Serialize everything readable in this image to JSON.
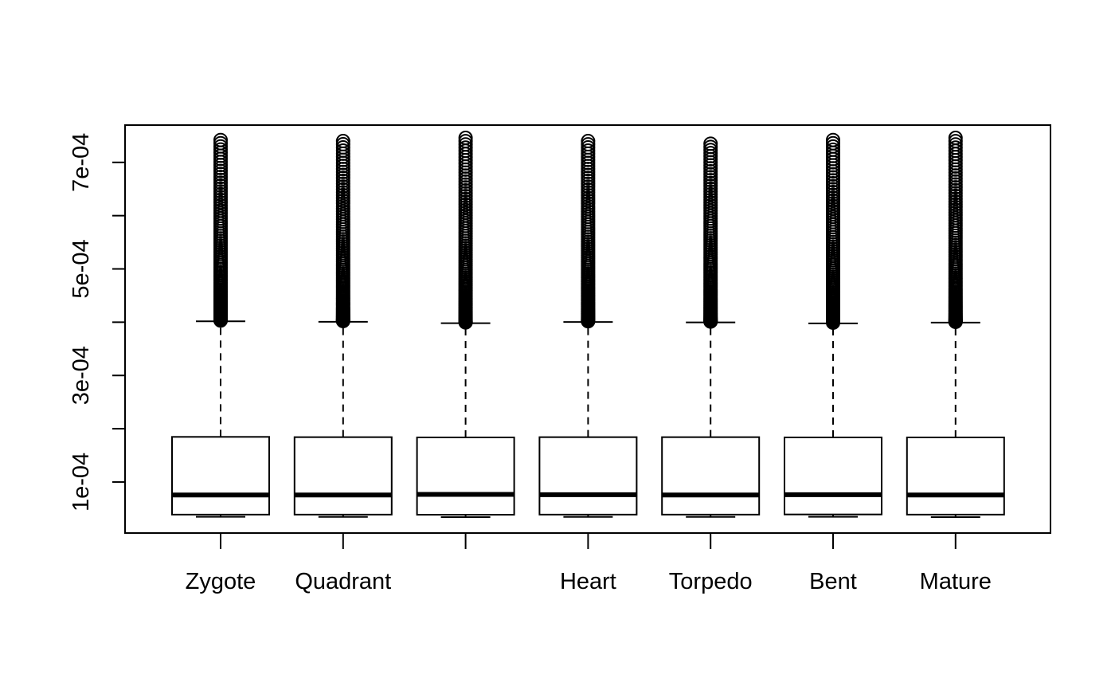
{
  "chart_data": {
    "type": "boxplot",
    "title": "",
    "xlabel": "",
    "ylabel": "",
    "ylim": [
      4.2e-06,
      0.00077
    ],
    "grid": false,
    "y_ticks": [
      {
        "value": 0.0001,
        "label": "1e-04"
      },
      {
        "value": 0.0002,
        "label": ""
      },
      {
        "value": 0.0003,
        "label": "3e-04"
      },
      {
        "value": 0.0004,
        "label": ""
      },
      {
        "value": 0.0005,
        "label": "5e-04"
      },
      {
        "value": 0.0006,
        "label": ""
      },
      {
        "value": 0.0007,
        "label": "7e-04"
      }
    ],
    "categories": [
      "Zygote",
      "Quadrant",
      "",
      "Heart",
      "Torpedo",
      "Bent",
      "Mature"
    ],
    "boxes": [
      {
        "whisker_low": 3.47e-05,
        "q1": 3.88e-05,
        "median": 7.57e-05,
        "q3": 0.0001847,
        "whisker_high": 0.0004017,
        "outlier_max": 0.000742
      },
      {
        "whisker_low": 3.44e-05,
        "q1": 3.88e-05,
        "median": 7.57e-05,
        "q3": 0.0001842,
        "whisker_high": 0.0004007,
        "outlier_max": 0.00074
      },
      {
        "whisker_low": 3.42e-05,
        "q1": 3.86e-05,
        "median": 7.67e-05,
        "q3": 0.0001837,
        "whisker_high": 0.0003982,
        "outlier_max": 0.000746
      },
      {
        "whisker_low": 3.44e-05,
        "q1": 3.88e-05,
        "median": 7.62e-05,
        "q3": 0.0001842,
        "whisker_high": 0.0004003,
        "outlier_max": 0.00074
      },
      {
        "whisker_low": 3.44e-05,
        "q1": 3.88e-05,
        "median": 7.57e-05,
        "q3": 0.0001842,
        "whisker_high": 0.0003997,
        "outlier_max": 0.000735
      },
      {
        "whisker_low": 3.47e-05,
        "q1": 3.91e-05,
        "median": 7.62e-05,
        "q3": 0.0001837,
        "whisker_high": 0.0003977,
        "outlier_max": 0.000742
      },
      {
        "whisker_low": 3.42e-05,
        "q1": 3.88e-05,
        "median": 7.57e-05,
        "q3": 0.0001837,
        "whisker_high": 0.0003992,
        "outlier_max": 0.000746
      }
    ]
  }
}
